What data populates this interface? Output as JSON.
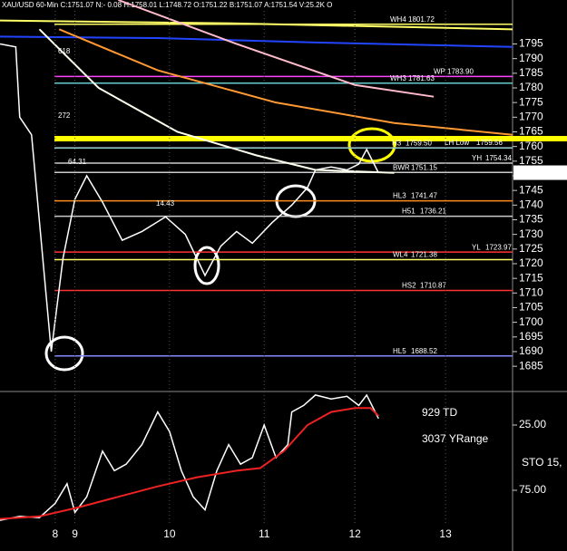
{
  "chart_data": [
    {
      "type": "line",
      "title": "XAU/USD 60-Min  C:1751.07  N:- 0.08  H:1758.01  L:1748.72  O:1751.22  B:1751.07  A:1751.54  V:25.2K  O",
      "xlim": [
        0,
        130
      ],
      "ylim": [
        1677,
        1810
      ],
      "grid": true,
      "xticks": [
        {
          "value": 14,
          "label": "8"
        },
        {
          "value": 19,
          "label": "9"
        },
        {
          "value": 43,
          "label": "10"
        },
        {
          "value": 67,
          "label": "11"
        },
        {
          "value": 90,
          "label": "12"
        },
        {
          "value": 113,
          "label": "13"
        }
      ],
      "yticks": [
        1685,
        1690,
        1695,
        1700,
        1705,
        1710,
        1715,
        1720,
        1725,
        1730,
        1735,
        1740,
        1745,
        1750,
        1755,
        1760,
        1765,
        1770,
        1775,
        1780,
        1785,
        1790,
        1795
      ],
      "last_price": 1751.07,
      "series": [
        {
          "color": "#ffffff",
          "x": [
            0,
            4,
            5,
            8,
            13,
            16,
            19,
            22,
            26,
            31,
            36,
            42,
            47,
            52,
            56,
            60,
            64,
            69,
            74,
            78,
            80,
            84,
            88,
            91,
            93,
            96
          ],
          "values": [
            1795,
            1794,
            1770,
            1764,
            1690,
            1722,
            1742,
            1750,
            1741,
            1728,
            1731,
            1736,
            1730,
            1716,
            1726,
            1731,
            1727,
            1734,
            1740,
            1746,
            1752,
            1753,
            1752,
            1754,
            1759,
            1751
          ]
        },
        {
          "color": "#2244ff",
          "x": [
            0,
            40,
            80,
            130
          ],
          "values": [
            1797.5,
            1797,
            1795.5,
            1794
          ]
        },
        {
          "color": "#ffff66",
          "x": [
            0,
            60,
            130
          ],
          "values": [
            1803,
            1802,
            1800
          ]
        },
        {
          "color": "#ff9933",
          "x": [
            15,
            40,
            70,
            100,
            130
          ],
          "values": [
            1800,
            1786,
            1775,
            1768,
            1764
          ]
        },
        {
          "color": "#ffbbcc",
          "x": [
            30,
            60,
            90,
            110
          ],
          "values": [
            1810,
            1795,
            1781,
            1777
          ]
        },
        {
          "color": "#ffffee",
          "x": [
            10,
            25,
            45,
            65,
            80,
            100
          ],
          "values": [
            1800,
            1780,
            1765,
            1757,
            1752,
            1751
          ]
        }
      ],
      "levels": [
        {
          "label": "WH4",
          "value": 1801.72,
          "color": "#ffff66"
        },
        {
          "label": "WP",
          "value": 1783.9,
          "value_label": "1783.90",
          "color": "#ff44ff"
        },
        {
          "label": "WH3",
          "value": 1781.63,
          "color": "#66cccc"
        },
        {
          "label": "LH Low",
          "value": 1759.56,
          "color": "#ff4444"
        },
        {
          "label": "H3",
          "value": 1759.5,
          "value_label": "1759.50",
          "color": "#88cccc"
        },
        {
          "label": "YH",
          "value": 1754.34,
          "color": "#cccccc"
        },
        {
          "label": "BWR",
          "value": 1751.15,
          "color": "#cccccc"
        },
        {
          "label": "HL3",
          "value": 1741.47,
          "color": "#ff8c1a"
        },
        {
          "label": "H51",
          "value": 1736.21,
          "color": "#cccccc"
        },
        {
          "label": "YL",
          "value": 1723.97,
          "color": "#ff3333"
        },
        {
          "label": "WL4",
          "value": 1721.38,
          "color": "#ffff66"
        },
        {
          "label": "HS2",
          "value": 1710.87,
          "color": "#ff3333"
        },
        {
          "label": "HL5",
          "value": 1688.52,
          "color": "#8888ff"
        }
      ],
      "annotations": [
        "64.31",
        "14.43",
        "618",
        "272"
      ]
    },
    {
      "type": "line",
      "ylim": [
        0,
        100
      ],
      "inverted": true,
      "yticks": [
        {
          "value": 25,
          "label": "25.00"
        },
        {
          "value": 75,
          "label": "75.00"
        }
      ],
      "annotations": [
        "929 TD",
        "3037 YRange",
        "STO 15,"
      ],
      "series": [
        {
          "color": "#ffffff",
          "x": [
            0,
            5,
            10,
            14,
            17,
            19,
            22,
            26,
            29,
            32,
            36,
            40,
            43,
            46,
            49,
            52,
            55,
            58,
            61,
            64,
            67,
            70,
            73,
            74,
            77,
            80,
            84,
            88,
            91,
            93,
            96
          ],
          "values": [
            98,
            95,
            96,
            85,
            70,
            92,
            80,
            45,
            60,
            55,
            40,
            15,
            30,
            60,
            80,
            90,
            60,
            40,
            55,
            50,
            25,
            50,
            40,
            15,
            10,
            2,
            5,
            3,
            10,
            2,
            20
          ]
        },
        {
          "color": "#ee2222",
          "x": [
            0,
            10,
            20,
            30,
            40,
            50,
            60,
            66,
            72,
            78,
            84,
            90,
            94,
            96
          ],
          "values": [
            97,
            95,
            88,
            80,
            72,
            65,
            60,
            58,
            45,
            25,
            15,
            12,
            12,
            18
          ]
        }
      ]
    }
  ]
}
